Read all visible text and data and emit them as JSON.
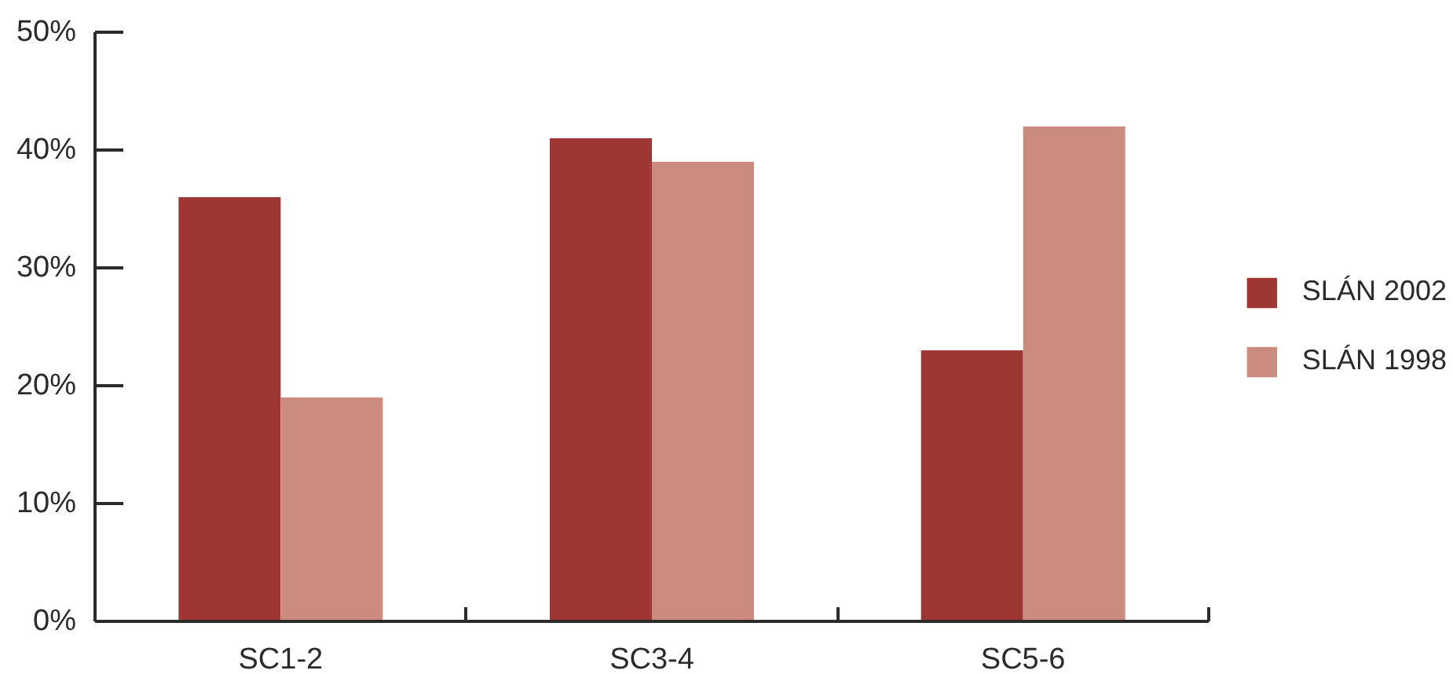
{
  "chart_data": {
    "type": "bar",
    "categories": [
      "SC1-2",
      "SC3-4",
      "SC5-6"
    ],
    "series": [
      {
        "name": "SLÁN 2002",
        "color": "#9e3634",
        "values": [
          36,
          41,
          23
        ]
      },
      {
        "name": "SLÁN 1998",
        "color": "#cc8b7f",
        "values": [
          19,
          39,
          42
        ]
      }
    ],
    "ylim": [
      0,
      50
    ],
    "yticks": [
      {
        "value": 0,
        "label": "0%"
      },
      {
        "value": 10,
        "label": "10%"
      },
      {
        "value": 20,
        "label": "20%"
      },
      {
        "value": 30,
        "label": "30%"
      },
      {
        "value": 40,
        "label": "40%"
      },
      {
        "value": 50,
        "label": "50%"
      }
    ],
    "grid": false,
    "legend": "right"
  }
}
